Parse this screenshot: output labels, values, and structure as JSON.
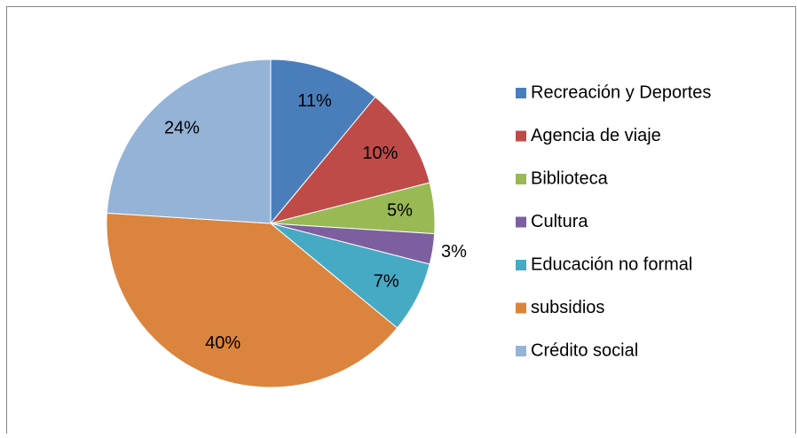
{
  "chart_data": {
    "type": "pie",
    "categories": [
      "Recreación y Deportes",
      "Agencia de viaje",
      "Biblioteca",
      "Cultura",
      "Educación no formal",
      "subsidios",
      "Crédito social"
    ],
    "values": [
      11,
      10,
      5,
      3,
      7,
      40,
      24
    ],
    "value_labels": [
      "11%",
      "10%",
      "5%",
      "3%",
      "7%",
      "40%",
      "24%"
    ],
    "colors": [
      "#4a7ebb",
      "#be4b48",
      "#98b954",
      "#7d5fa0",
      "#46aac5",
      "#db843d",
      "#95b3d7"
    ],
    "legend": "right"
  }
}
